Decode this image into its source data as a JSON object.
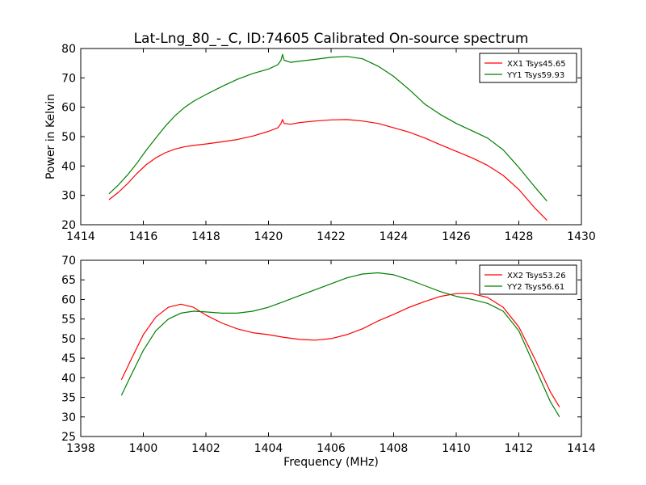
{
  "title": "Lat-Lng_80_-_C, ID:74605 Calibrated On-source spectrum",
  "chart_data": [
    {
      "type": "line",
      "xlabel": "",
      "ylabel": "Power in Kelvin",
      "xlim": [
        1414,
        1430
      ],
      "ylim": [
        20,
        80
      ],
      "xticks": [
        1414,
        1416,
        1418,
        1420,
        1422,
        1424,
        1426,
        1428,
        1430
      ],
      "yticks": [
        20,
        30,
        40,
        50,
        60,
        70,
        80
      ],
      "legend_position": "top-right",
      "grid": false,
      "series": [
        {
          "name": "XX1 Tsys45.65",
          "color": "#ff0000",
          "points": [
            [
              1414.9,
              28.5
            ],
            [
              1415.2,
              31
            ],
            [
              1415.5,
              34
            ],
            [
              1415.8,
              37.5
            ],
            [
              1416.1,
              40.5
            ],
            [
              1416.4,
              42.8
            ],
            [
              1416.7,
              44.5
            ],
            [
              1417.0,
              45.7
            ],
            [
              1417.3,
              46.5
            ],
            [
              1417.6,
              47.0
            ],
            [
              1418.0,
              47.5
            ],
            [
              1418.5,
              48.2
            ],
            [
              1419.0,
              49.0
            ],
            [
              1419.5,
              50.2
            ],
            [
              1420.0,
              51.8
            ],
            [
              1420.3,
              53.0
            ],
            [
              1420.4,
              54.5
            ],
            [
              1420.45,
              55.8
            ],
            [
              1420.5,
              54.5
            ],
            [
              1420.7,
              54.2
            ],
            [
              1421.0,
              54.8
            ],
            [
              1421.5,
              55.3
            ],
            [
              1422.0,
              55.7
            ],
            [
              1422.5,
              55.8
            ],
            [
              1423.0,
              55.3
            ],
            [
              1423.5,
              54.5
            ],
            [
              1424.0,
              53.0
            ],
            [
              1424.5,
              51.5
            ],
            [
              1425.0,
              49.5
            ],
            [
              1425.5,
              47.2
            ],
            [
              1426.0,
              45.0
            ],
            [
              1426.5,
              42.8
            ],
            [
              1427.0,
              40.2
            ],
            [
              1427.5,
              36.8
            ],
            [
              1428.0,
              32.0
            ],
            [
              1428.5,
              25.8
            ],
            [
              1428.9,
              21.5
            ]
          ]
        },
        {
          "name": "YY1 Tsys59.93",
          "color": "#008000",
          "points": [
            [
              1414.9,
              30.5
            ],
            [
              1415.2,
              33.5
            ],
            [
              1415.5,
              37
            ],
            [
              1415.8,
              41
            ],
            [
              1416.1,
              45.5
            ],
            [
              1416.4,
              49.5
            ],
            [
              1416.7,
              53.5
            ],
            [
              1417.0,
              57.0
            ],
            [
              1417.3,
              59.8
            ],
            [
              1417.6,
              62.0
            ],
            [
              1418.0,
              64.3
            ],
            [
              1418.5,
              67.0
            ],
            [
              1419.0,
              69.5
            ],
            [
              1419.5,
              71.5
            ],
            [
              1420.0,
              73.0
            ],
            [
              1420.3,
              74.5
            ],
            [
              1420.4,
              76.0
            ],
            [
              1420.45,
              78.0
            ],
            [
              1420.5,
              76.0
            ],
            [
              1420.7,
              75.3
            ],
            [
              1421.0,
              75.7
            ],
            [
              1421.5,
              76.3
            ],
            [
              1422.0,
              77.0
            ],
            [
              1422.5,
              77.3
            ],
            [
              1423.0,
              76.5
            ],
            [
              1423.5,
              74.0
            ],
            [
              1424.0,
              70.5
            ],
            [
              1424.5,
              66.0
            ],
            [
              1425.0,
              61.0
            ],
            [
              1425.5,
              57.5
            ],
            [
              1426.0,
              54.5
            ],
            [
              1426.5,
              52.0
            ],
            [
              1427.0,
              49.5
            ],
            [
              1427.5,
              45.5
            ],
            [
              1428.0,
              39.5
            ],
            [
              1428.5,
              33.0
            ],
            [
              1428.9,
              28.0
            ]
          ]
        }
      ]
    },
    {
      "type": "line",
      "xlabel": "Frequency (MHz)",
      "ylabel": "",
      "xlim": [
        1398,
        1414
      ],
      "ylim": [
        25,
        70
      ],
      "xticks": [
        1398,
        1400,
        1402,
        1404,
        1406,
        1408,
        1410,
        1412,
        1414
      ],
      "yticks": [
        25,
        30,
        35,
        40,
        45,
        50,
        55,
        60,
        65,
        70
      ],
      "legend_position": "top-right",
      "grid": false,
      "series": [
        {
          "name": "XX2 Tsys53.26",
          "color": "#ff0000",
          "points": [
            [
              1399.3,
              39.5
            ],
            [
              1399.6,
              44.5
            ],
            [
              1400.0,
              51.0
            ],
            [
              1400.4,
              55.5
            ],
            [
              1400.8,
              58.0
            ],
            [
              1401.2,
              58.8
            ],
            [
              1401.6,
              58.0
            ],
            [
              1402.0,
              56.0
            ],
            [
              1402.5,
              54.0
            ],
            [
              1403.0,
              52.5
            ],
            [
              1403.5,
              51.5
            ],
            [
              1404.0,
              51.0
            ],
            [
              1404.5,
              50.3
            ],
            [
              1405.0,
              49.8
            ],
            [
              1405.5,
              49.6
            ],
            [
              1406.0,
              50.0
            ],
            [
              1406.5,
              51.0
            ],
            [
              1407.0,
              52.5
            ],
            [
              1407.5,
              54.5
            ],
            [
              1408.0,
              56.2
            ],
            [
              1408.5,
              58.0
            ],
            [
              1409.0,
              59.5
            ],
            [
              1409.5,
              60.8
            ],
            [
              1410.0,
              61.5
            ],
            [
              1410.5,
              61.5
            ],
            [
              1411.0,
              60.5
            ],
            [
              1411.5,
              58.0
            ],
            [
              1412.0,
              53.0
            ],
            [
              1412.5,
              45.0
            ],
            [
              1413.0,
              36.5
            ],
            [
              1413.3,
              32.5
            ]
          ]
        },
        {
          "name": "YY2 Tsys56.61",
          "color": "#008000",
          "points": [
            [
              1399.3,
              35.5
            ],
            [
              1399.6,
              40.5
            ],
            [
              1400.0,
              47.0
            ],
            [
              1400.4,
              52.0
            ],
            [
              1400.8,
              55.0
            ],
            [
              1401.2,
              56.5
            ],
            [
              1401.6,
              57.0
            ],
            [
              1402.0,
              56.8
            ],
            [
              1402.5,
              56.5
            ],
            [
              1403.0,
              56.5
            ],
            [
              1403.5,
              57.0
            ],
            [
              1404.0,
              58.0
            ],
            [
              1404.5,
              59.5
            ],
            [
              1405.0,
              61.0
            ],
            [
              1405.5,
              62.5
            ],
            [
              1406.0,
              64.0
            ],
            [
              1406.5,
              65.5
            ],
            [
              1407.0,
              66.5
            ],
            [
              1407.5,
              66.8
            ],
            [
              1408.0,
              66.3
            ],
            [
              1408.5,
              65.0
            ],
            [
              1409.0,
              63.5
            ],
            [
              1409.5,
              62.0
            ],
            [
              1410.0,
              60.8
            ],
            [
              1410.5,
              60.0
            ],
            [
              1411.0,
              59.0
            ],
            [
              1411.5,
              57.0
            ],
            [
              1412.0,
              52.0
            ],
            [
              1412.5,
              43.0
            ],
            [
              1413.0,
              34.0
            ],
            [
              1413.3,
              30.0
            ]
          ]
        }
      ]
    }
  ]
}
